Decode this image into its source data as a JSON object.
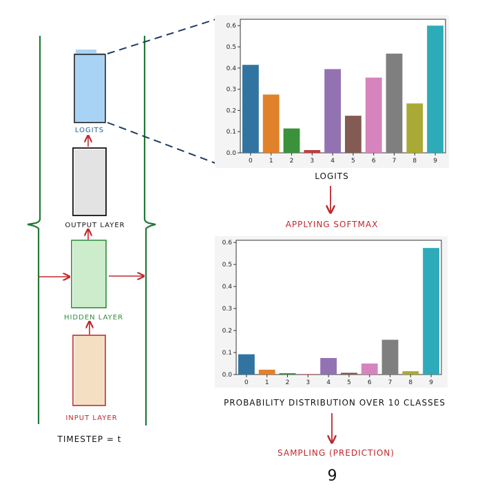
{
  "network": {
    "logits_label": "LOGITS",
    "output_layer_label": "OUTPUT LAYER",
    "hidden_layer_label": "HIDDEN LAYER",
    "input_layer_label": "INPUT LAYER",
    "timestep_label": "TIMESTEP = t"
  },
  "labels": {
    "logits_chart_caption": "LOGITS",
    "applying_softmax": "APPLYING SOFTMAX",
    "prob_caption": "PROBABILITY DISTRIBUTION OVER 10 CLASSES",
    "sampling": "SAMPLING (PREDICTION)",
    "prediction": "9"
  },
  "colors": {
    "logits_box": "#a9d3f5",
    "output_box": "#e3e3e3",
    "hidden_box": "#cdeccb",
    "input_box": "#f5dfc2",
    "green_line": "#1f7a35",
    "red": "#c0272d",
    "dashed": "#1d3a5f"
  },
  "chart_data": [
    {
      "type": "bar",
      "categories": [
        "0",
        "1",
        "2",
        "3",
        "4",
        "5",
        "6",
        "7",
        "8",
        "9"
      ],
      "values": [
        0.415,
        0.275,
        0.115,
        0.013,
        0.395,
        0.175,
        0.355,
        0.468,
        0.233,
        0.6
      ],
      "colors": [
        "#3274a1",
        "#e1812c",
        "#3a923a",
        "#c03d3e",
        "#9372b2",
        "#845b53",
        "#d684bd",
        "#7f7f7f",
        "#a9aa35",
        "#2eabb8"
      ],
      "ylim": [
        0,
        0.63
      ],
      "yticks": [
        "0.0",
        "0.1",
        "0.2",
        "0.3",
        "0.4",
        "0.5",
        "0.6"
      ],
      "ytick_values": [
        0,
        0.1,
        0.2,
        0.3,
        0.4,
        0.5,
        0.6
      ],
      "grid": false
    },
    {
      "type": "bar",
      "categories": [
        "0",
        "1",
        "2",
        "3",
        "4",
        "5",
        "6",
        "7",
        "8",
        "9"
      ],
      "values": [
        0.092,
        0.022,
        0.006,
        0.002,
        0.075,
        0.008,
        0.05,
        0.158,
        0.015,
        0.575
      ],
      "colors": [
        "#3274a1",
        "#e1812c",
        "#3a923a",
        "#c03d3e",
        "#9372b2",
        "#845b53",
        "#d684bd",
        "#7f7f7f",
        "#a9aa35",
        "#2eabb8"
      ],
      "ylim": [
        0,
        0.61
      ],
      "yticks": [
        "0.0",
        "0.1",
        "0.2",
        "0.3",
        "0.4",
        "0.5",
        "0.6"
      ],
      "ytick_values": [
        0,
        0.1,
        0.2,
        0.3,
        0.4,
        0.5,
        0.6
      ],
      "grid": false
    }
  ]
}
